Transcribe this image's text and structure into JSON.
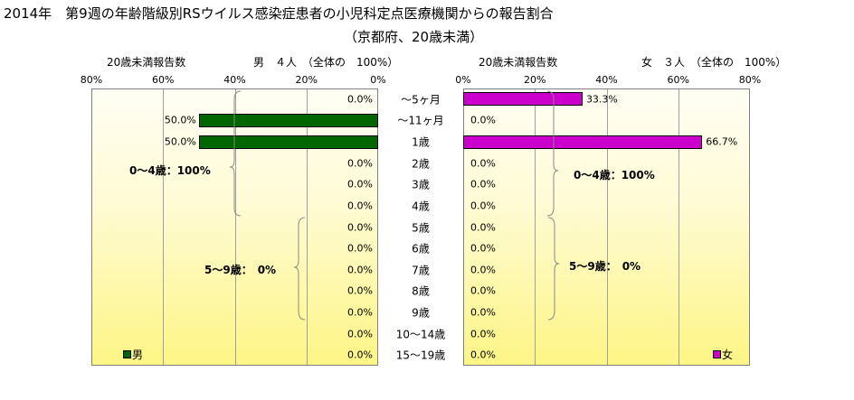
{
  "header": {
    "title": "2014年　第9週の年齢階級別RSウイルス感染症患者の小児科定点医療機関からの報告割合",
    "subtitle": "（京都府、20歳未満）"
  },
  "colors": {
    "male": "#006600",
    "female": "#cc00cc"
  },
  "chart_data": [
    {
      "type": "bar",
      "orientation": "horizontal",
      "direction": "right-to-left",
      "subtitle_left": "20歳未満報告数",
      "subtitle_right": "男　４人　（全体の　100%）",
      "legend": "男",
      "xlim": [
        0,
        80
      ],
      "ticks": [
        "80%",
        "60%",
        "40%",
        "20%",
        "0%"
      ],
      "categories": [
        "～5ヶ月",
        "～11ヶ月",
        "1歳",
        "2歳",
        "3歳",
        "4歳",
        "5歳",
        "6歳",
        "7歳",
        "8歳",
        "9歳",
        "10～14歳",
        "15～19歳"
      ],
      "values": [
        0,
        50,
        50,
        0,
        0,
        0,
        0,
        0,
        0,
        0,
        0,
        0,
        0
      ],
      "labels": [
        "0.0%",
        "50.0%",
        "50.0%",
        "0.0%",
        "0.0%",
        "0.0%",
        "0.0%",
        "0.0%",
        "0.0%",
        "0.0%",
        "0.0%",
        "0.0%",
        "0.0%"
      ],
      "group_labels": [
        "0～4歳：100%",
        "5～9歳：　0%"
      ]
    },
    {
      "type": "bar",
      "orientation": "horizontal",
      "direction": "left-to-right",
      "subtitle_left": "20歳未満報告数",
      "subtitle_right": "女　３人　（全体の　100%）",
      "legend": "女",
      "xlim": [
        0,
        80
      ],
      "ticks": [
        "0%",
        "20%",
        "40%",
        "60%",
        "80%"
      ],
      "categories": [
        "～5ヶ月",
        "～11ヶ月",
        "1歳",
        "2歳",
        "3歳",
        "4歳",
        "5歳",
        "6歳",
        "7歳",
        "8歳",
        "9歳",
        "10～14歳",
        "15～19歳"
      ],
      "values": [
        33.3,
        0,
        66.7,
        0,
        0,
        0,
        0,
        0,
        0,
        0,
        0,
        0,
        0
      ],
      "labels": [
        "33.3%",
        "0.0%",
        "66.7%",
        "0.0%",
        "0.0%",
        "0.0%",
        "0.0%",
        "0.0%",
        "0.0%",
        "0.0%",
        "0.0%",
        "0.0%",
        "0.0%"
      ],
      "group_labels": [
        "0～4歳：100%",
        "5～9歳：　0%"
      ]
    }
  ]
}
